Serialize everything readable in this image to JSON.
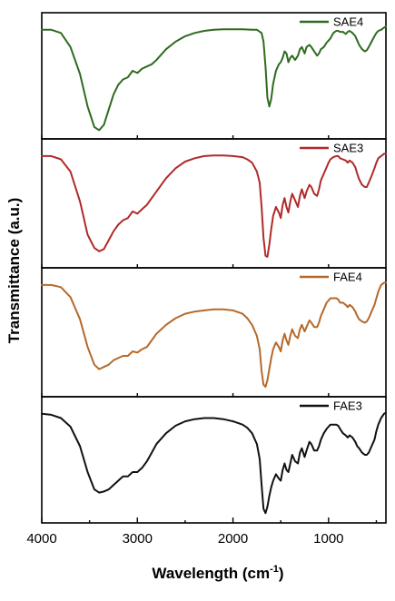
{
  "chart_data": {
    "type": "line",
    "xlabel": "Wavelength (cm",
    "xlabel_superscript": "-1",
    "xlabel_close": ")",
    "ylabel": "Transmittance (a.u.)",
    "xlim": [
      4000,
      400
    ],
    "x_reversed": true,
    "xticks": [
      "4000",
      "3000",
      "2000",
      "1000"
    ],
    "xtick_values": [
      4000,
      3000,
      2000,
      1000
    ],
    "legend_position": "top-right",
    "grid": false,
    "yticks_shown": false,
    "panels": [
      {
        "name": "SAE4",
        "color": "#2e6b1f",
        "x": [
          4000,
          3900,
          3800,
          3700,
          3600,
          3520,
          3450,
          3400,
          3350,
          3300,
          3250,
          3200,
          3150,
          3100,
          3050,
          3000,
          2950,
          2900,
          2850,
          2800,
          2700,
          2600,
          2500,
          2400,
          2300,
          2200,
          2100,
          2000,
          1900,
          1800,
          1750,
          1700,
          1680,
          1660,
          1640,
          1620,
          1600,
          1580,
          1550,
          1520,
          1500,
          1480,
          1460,
          1440,
          1420,
          1400,
          1380,
          1350,
          1320,
          1300,
          1280,
          1250,
          1230,
          1200,
          1180,
          1150,
          1120,
          1100,
          1080,
          1050,
          1020,
          1000,
          980,
          950,
          920,
          900,
          880,
          850,
          820,
          800,
          780,
          750,
          720,
          700,
          680,
          650,
          620,
          600,
          580,
          550,
          520,
          500,
          480,
          450,
          420,
          400
        ],
        "y": [
          0.96,
          0.96,
          0.93,
          0.8,
          0.55,
          0.25,
          0.06,
          0.03,
          0.08,
          0.22,
          0.36,
          0.45,
          0.5,
          0.52,
          0.58,
          0.56,
          0.6,
          0.62,
          0.64,
          0.68,
          0.78,
          0.85,
          0.9,
          0.93,
          0.95,
          0.96,
          0.965,
          0.965,
          0.965,
          0.96,
          0.96,
          0.93,
          0.85,
          0.62,
          0.33,
          0.25,
          0.32,
          0.46,
          0.58,
          0.64,
          0.66,
          0.7,
          0.76,
          0.74,
          0.66,
          0.7,
          0.72,
          0.68,
          0.72,
          0.78,
          0.8,
          0.74,
          0.8,
          0.82,
          0.8,
          0.76,
          0.72,
          0.74,
          0.78,
          0.8,
          0.84,
          0.86,
          0.88,
          0.93,
          0.95,
          0.95,
          0.94,
          0.94,
          0.92,
          0.94,
          0.95,
          0.93,
          0.9,
          0.86,
          0.82,
          0.78,
          0.76,
          0.77,
          0.8,
          0.85,
          0.9,
          0.93,
          0.95,
          0.96,
          0.98,
          0.99
        ]
      },
      {
        "name": "SAE3",
        "color": "#b02a2a",
        "x": [
          4000,
          3900,
          3800,
          3700,
          3600,
          3520,
          3450,
          3400,
          3350,
          3300,
          3250,
          3200,
          3150,
          3100,
          3050,
          3000,
          2950,
          2900,
          2850,
          2800,
          2700,
          2600,
          2500,
          2400,
          2300,
          2200,
          2100,
          2000,
          1900,
          1850,
          1800,
          1750,
          1720,
          1700,
          1680,
          1660,
          1640,
          1620,
          1600,
          1580,
          1550,
          1520,
          1500,
          1480,
          1460,
          1440,
          1420,
          1400,
          1380,
          1350,
          1320,
          1300,
          1280,
          1250,
          1230,
          1200,
          1180,
          1150,
          1120,
          1100,
          1080,
          1050,
          1020,
          1000,
          980,
          950,
          920,
          900,
          880,
          850,
          820,
          800,
          780,
          750,
          720,
          700,
          680,
          650,
          620,
          600,
          580,
          550,
          520,
          500,
          480,
          450,
          420,
          400
        ],
        "y": [
          0.96,
          0.96,
          0.93,
          0.82,
          0.55,
          0.25,
          0.13,
          0.1,
          0.12,
          0.2,
          0.28,
          0.34,
          0.38,
          0.4,
          0.46,
          0.44,
          0.48,
          0.52,
          0.58,
          0.64,
          0.76,
          0.85,
          0.91,
          0.94,
          0.96,
          0.965,
          0.965,
          0.96,
          0.95,
          0.93,
          0.9,
          0.82,
          0.72,
          0.5,
          0.22,
          0.06,
          0.05,
          0.16,
          0.3,
          0.42,
          0.5,
          0.45,
          0.4,
          0.52,
          0.58,
          0.5,
          0.45,
          0.55,
          0.62,
          0.56,
          0.5,
          0.6,
          0.66,
          0.58,
          0.64,
          0.7,
          0.68,
          0.62,
          0.6,
          0.66,
          0.74,
          0.8,
          0.86,
          0.9,
          0.93,
          0.95,
          0.96,
          0.96,
          0.94,
          0.93,
          0.92,
          0.9,
          0.92,
          0.9,
          0.86,
          0.8,
          0.75,
          0.7,
          0.68,
          0.68,
          0.72,
          0.78,
          0.85,
          0.9,
          0.94,
          0.96,
          0.98,
          0.98
        ]
      },
      {
        "name": "FAE4",
        "color": "#b5692b",
        "x": [
          4000,
          3900,
          3800,
          3700,
          3600,
          3520,
          3450,
          3400,
          3350,
          3300,
          3250,
          3200,
          3150,
          3100,
          3050,
          3000,
          2950,
          2900,
          2850,
          2800,
          2700,
          2600,
          2500,
          2400,
          2300,
          2200,
          2100,
          2000,
          1900,
          1850,
          1800,
          1750,
          1720,
          1700,
          1680,
          1660,
          1640,
          1620,
          1600,
          1580,
          1550,
          1520,
          1500,
          1480,
          1460,
          1440,
          1420,
          1400,
          1380,
          1350,
          1320,
          1300,
          1280,
          1250,
          1230,
          1200,
          1180,
          1150,
          1120,
          1100,
          1080,
          1050,
          1020,
          1000,
          980,
          950,
          920,
          900,
          880,
          850,
          820,
          800,
          780,
          750,
          720,
          700,
          680,
          650,
          620,
          600,
          580,
          550,
          520,
          500,
          480,
          450,
          420,
          400
        ],
        "y": [
          0.96,
          0.96,
          0.94,
          0.85,
          0.65,
          0.4,
          0.24,
          0.2,
          0.22,
          0.24,
          0.28,
          0.3,
          0.32,
          0.32,
          0.36,
          0.35,
          0.38,
          0.4,
          0.46,
          0.52,
          0.6,
          0.66,
          0.7,
          0.72,
          0.73,
          0.74,
          0.74,
          0.73,
          0.7,
          0.66,
          0.6,
          0.5,
          0.38,
          0.18,
          0.06,
          0.04,
          0.1,
          0.2,
          0.3,
          0.38,
          0.44,
          0.4,
          0.36,
          0.46,
          0.52,
          0.46,
          0.42,
          0.5,
          0.56,
          0.5,
          0.48,
          0.56,
          0.6,
          0.54,
          0.58,
          0.64,
          0.62,
          0.58,
          0.58,
          0.62,
          0.68,
          0.74,
          0.8,
          0.82,
          0.84,
          0.84,
          0.84,
          0.83,
          0.8,
          0.8,
          0.78,
          0.76,
          0.78,
          0.76,
          0.72,
          0.68,
          0.65,
          0.63,
          0.62,
          0.63,
          0.66,
          0.72,
          0.78,
          0.84,
          0.9,
          0.96,
          0.98,
          0.98
        ]
      },
      {
        "name": "FAE3",
        "color": "#111111",
        "x": [
          4000,
          3900,
          3800,
          3700,
          3600,
          3520,
          3450,
          3400,
          3350,
          3300,
          3250,
          3200,
          3150,
          3100,
          3050,
          3000,
          2950,
          2900,
          2850,
          2800,
          2700,
          2600,
          2500,
          2400,
          2300,
          2200,
          2100,
          2000,
          1900,
          1850,
          1800,
          1750,
          1720,
          1700,
          1680,
          1660,
          1640,
          1620,
          1600,
          1580,
          1550,
          1520,
          1500,
          1480,
          1460,
          1440,
          1420,
          1400,
          1380,
          1350,
          1320,
          1300,
          1280,
          1250,
          1230,
          1200,
          1180,
          1150,
          1120,
          1100,
          1080,
          1050,
          1020,
          1000,
          980,
          950,
          920,
          900,
          880,
          850,
          820,
          800,
          780,
          750,
          720,
          700,
          680,
          650,
          620,
          600,
          580,
          550,
          520,
          500,
          480,
          450,
          420,
          400
        ],
        "y": [
          0.96,
          0.95,
          0.92,
          0.84,
          0.66,
          0.42,
          0.26,
          0.23,
          0.24,
          0.26,
          0.3,
          0.34,
          0.38,
          0.38,
          0.42,
          0.42,
          0.46,
          0.52,
          0.6,
          0.68,
          0.78,
          0.85,
          0.89,
          0.91,
          0.92,
          0.92,
          0.91,
          0.89,
          0.86,
          0.83,
          0.78,
          0.68,
          0.54,
          0.3,
          0.08,
          0.04,
          0.1,
          0.2,
          0.28,
          0.34,
          0.4,
          0.36,
          0.34,
          0.44,
          0.5,
          0.44,
          0.42,
          0.5,
          0.58,
          0.52,
          0.5,
          0.6,
          0.64,
          0.56,
          0.62,
          0.7,
          0.68,
          0.62,
          0.62,
          0.66,
          0.72,
          0.78,
          0.82,
          0.84,
          0.86,
          0.86,
          0.86,
          0.85,
          0.82,
          0.78,
          0.76,
          0.74,
          0.76,
          0.74,
          0.7,
          0.66,
          0.64,
          0.6,
          0.58,
          0.58,
          0.6,
          0.66,
          0.72,
          0.8,
          0.86,
          0.92,
          0.96,
          0.97
        ]
      }
    ]
  }
}
